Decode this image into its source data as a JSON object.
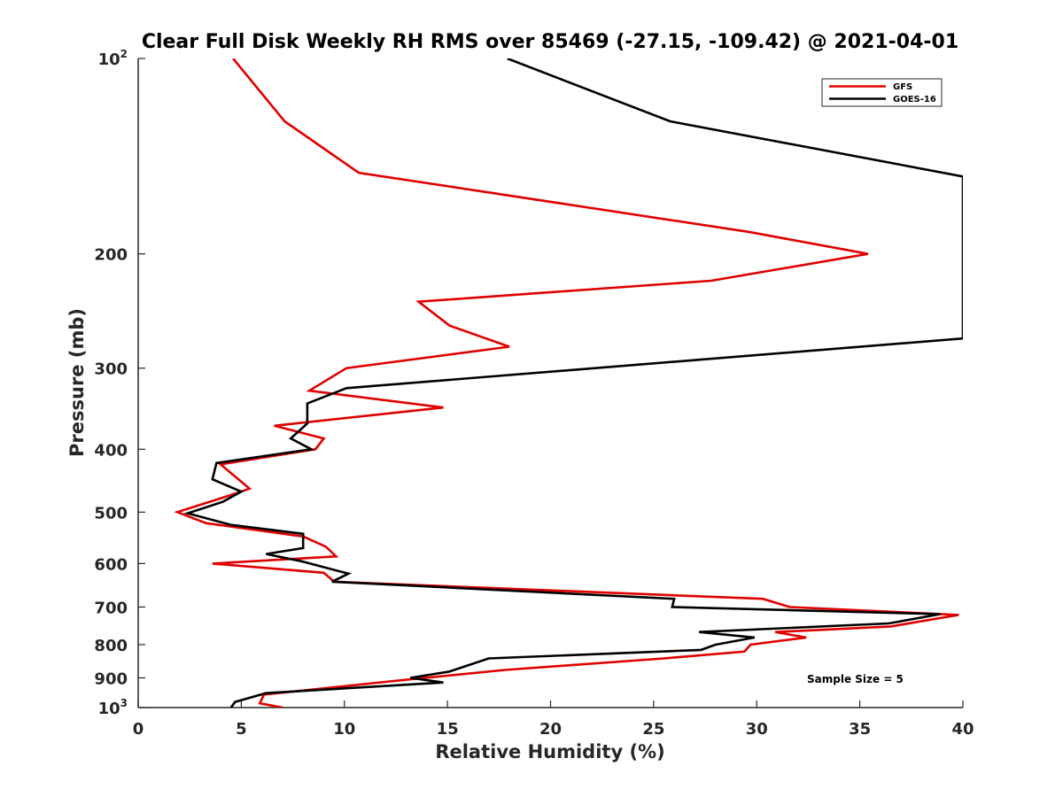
{
  "chart_data": {
    "type": "line",
    "title": "Clear Full Disk Weekly RH RMS over 85469 (-27.15, -109.42) @ 2021-04-01",
    "xlabel": "Relative Humidity (%)",
    "ylabel": "Pressure (mb)",
    "xlim": [
      0,
      40
    ],
    "ylim": [
      100,
      1000
    ],
    "y_scale": "log",
    "y_reversed": true,
    "grid": false,
    "legend_position": "top-right",
    "annotation": "Sample Size = 5",
    "x_ticks": [
      "0",
      "5",
      "10",
      "15",
      "20",
      "25",
      "30",
      "35",
      "40"
    ],
    "y_ticks": [
      {
        "value": 100,
        "base": "10",
        "exp": "2"
      },
      {
        "value": 200,
        "label": "200"
      },
      {
        "value": 300,
        "label": "300"
      },
      {
        "value": 400,
        "label": "400"
      },
      {
        "value": 500,
        "label": "500"
      },
      {
        "value": 600,
        "label": "600"
      },
      {
        "value": 700,
        "label": "700"
      },
      {
        "value": 800,
        "label": "800"
      },
      {
        "value": 900,
        "label": "900"
      },
      {
        "value": 1000,
        "base": "10",
        "exp": "3"
      }
    ],
    "series": [
      {
        "name": "GFS",
        "color": "#e00000",
        "points": [
          {
            "x": 4.6,
            "p": 100
          },
          {
            "x": 7.1,
            "p": 125
          },
          {
            "x": 10.7,
            "p": 150
          },
          {
            "x": 29.6,
            "p": 185
          },
          {
            "x": 35.4,
            "p": 200
          },
          {
            "x": 27.8,
            "p": 220
          },
          {
            "x": 13.6,
            "p": 237
          },
          {
            "x": 15.1,
            "p": 258
          },
          {
            "x": 18.0,
            "p": 278
          },
          {
            "x": 10.1,
            "p": 300
          },
          {
            "x": 8.3,
            "p": 325
          },
          {
            "x": 14.8,
            "p": 345
          },
          {
            "x": 6.6,
            "p": 368
          },
          {
            "x": 9.0,
            "p": 385
          },
          {
            "x": 8.6,
            "p": 400
          },
          {
            "x": 4.0,
            "p": 422
          },
          {
            "x": 5.4,
            "p": 460
          },
          {
            "x": 4.1,
            "p": 475
          },
          {
            "x": 1.9,
            "p": 500
          },
          {
            "x": 3.3,
            "p": 520
          },
          {
            "x": 8.0,
            "p": 545
          },
          {
            "x": 9.1,
            "p": 565
          },
          {
            "x": 9.6,
            "p": 585
          },
          {
            "x": 3.6,
            "p": 600
          },
          {
            "x": 9.0,
            "p": 620
          },
          {
            "x": 9.5,
            "p": 640
          },
          {
            "x": 20.0,
            "p": 660
          },
          {
            "x": 30.3,
            "p": 680
          },
          {
            "x": 31.6,
            "p": 700
          },
          {
            "x": 39.8,
            "p": 720
          },
          {
            "x": 36.5,
            "p": 750
          },
          {
            "x": 30.9,
            "p": 765
          },
          {
            "x": 32.4,
            "p": 780
          },
          {
            "x": 29.7,
            "p": 800
          },
          {
            "x": 29.4,
            "p": 820
          },
          {
            "x": 25.5,
            "p": 840
          },
          {
            "x": 17.8,
            "p": 875
          },
          {
            "x": 12.4,
            "p": 910
          },
          {
            "x": 6.1,
            "p": 955
          },
          {
            "x": 5.9,
            "p": 985
          },
          {
            "x": 7.0,
            "p": 1000
          }
        ]
      },
      {
        "name": "GOES-16",
        "color": "#000000",
        "points": [
          {
            "x": 17.9,
            "p": 100
          },
          {
            "x": 25.8,
            "p": 125
          },
          {
            "x": 40.0,
            "p": 152
          },
          {
            "x": 40.0,
            "p": 270
          },
          {
            "x": 10.1,
            "p": 322
          },
          {
            "x": 8.2,
            "p": 340
          },
          {
            "x": 8.2,
            "p": 365
          },
          {
            "x": 7.4,
            "p": 385
          },
          {
            "x": 8.4,
            "p": 400
          },
          {
            "x": 3.8,
            "p": 420
          },
          {
            "x": 3.6,
            "p": 445
          },
          {
            "x": 5.0,
            "p": 465
          },
          {
            "x": 4.1,
            "p": 482
          },
          {
            "x": 2.4,
            "p": 502
          },
          {
            "x": 4.5,
            "p": 523
          },
          {
            "x": 8.0,
            "p": 540
          },
          {
            "x": 8.0,
            "p": 568
          },
          {
            "x": 6.2,
            "p": 580
          },
          {
            "x": 7.9,
            "p": 595
          },
          {
            "x": 10.2,
            "p": 622
          },
          {
            "x": 9.4,
            "p": 640
          },
          {
            "x": 26.0,
            "p": 680
          },
          {
            "x": 25.9,
            "p": 700
          },
          {
            "x": 38.9,
            "p": 718
          },
          {
            "x": 36.4,
            "p": 742
          },
          {
            "x": 27.2,
            "p": 765
          },
          {
            "x": 29.9,
            "p": 780
          },
          {
            "x": 28.0,
            "p": 800
          },
          {
            "x": 27.3,
            "p": 815
          },
          {
            "x": 17.0,
            "p": 840
          },
          {
            "x": 15.1,
            "p": 880
          },
          {
            "x": 13.2,
            "p": 900
          },
          {
            "x": 14.8,
            "p": 915
          },
          {
            "x": 6.2,
            "p": 950
          },
          {
            "x": 4.7,
            "p": 980
          },
          {
            "x": 4.5,
            "p": 1000
          }
        ]
      }
    ]
  }
}
